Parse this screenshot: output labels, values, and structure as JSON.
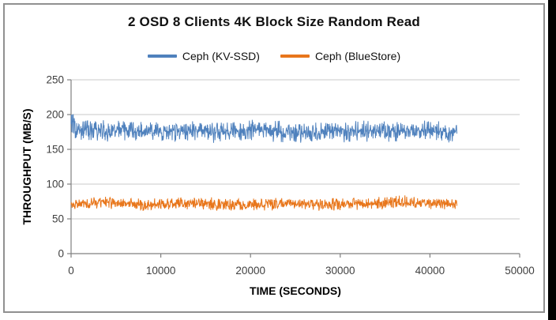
{
  "chart_data": {
    "type": "line",
    "title": "2 OSD 8 Clients 4K Block Size Random Read",
    "xlabel": "TIME (SECONDS)",
    "ylabel": "THROUGHPUT (MB/S)",
    "xlim": [
      0,
      50000
    ],
    "ylim": [
      0,
      250
    ],
    "x_ticks": [
      "0",
      "10000",
      "20000",
      "30000",
      "40000",
      "50000"
    ],
    "x_tick_values": [
      0,
      10000,
      20000,
      30000,
      40000,
      50000
    ],
    "y_ticks": [
      "0",
      "50",
      "100",
      "150",
      "200",
      "250"
    ],
    "y_tick_values": [
      0,
      50,
      100,
      150,
      200,
      250
    ],
    "grid": "horizontal",
    "legend_position": "top-center",
    "series": [
      {
        "name": "Ceph (KV-SSD)",
        "color": "#4F81BD",
        "x_start": 0,
        "x_end": 43000,
        "mean": 176,
        "band_min": 163,
        "band_max": 190,
        "start_peak": 200,
        "midline": [
          179,
          177,
          176,
          178,
          175,
          174,
          176,
          177,
          175,
          176,
          178,
          177,
          175,
          174,
          176,
          175,
          177,
          176,
          175,
          177,
          176,
          176
        ]
      },
      {
        "name": "Ceph (BlueStore)",
        "color": "#E8761B",
        "x_start": 0,
        "x_end": 43000,
        "mean": 71,
        "band_min": 64,
        "band_max": 80,
        "midline": [
          70,
          73,
          74,
          72,
          70,
          71,
          72,
          73,
          71,
          69,
          70,
          71,
          72,
          71,
          70,
          72,
          71,
          73,
          75,
          72,
          71,
          72
        ]
      }
    ]
  },
  "colors": {
    "background": "#FFFFFF",
    "border": "#909090",
    "side_bar": "#000000",
    "grid": "#C9C9C9",
    "axis": "#808080",
    "tick_text": "#3F3F3F",
    "text": "#111111"
  }
}
